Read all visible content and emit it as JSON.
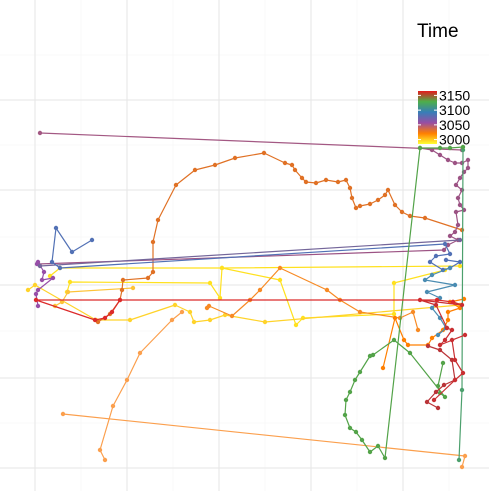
{
  "chart_data": {
    "type": "line",
    "title": "",
    "xlabel": "",
    "ylabel": "",
    "xlim": [
      0,
      489
    ],
    "ylim": [
      0,
      491
    ],
    "grid": true,
    "color_variable": "Time",
    "color_range": [
      2985,
      3165
    ],
    "legend": {
      "title": "Time",
      "position": "top-right",
      "ticks": [
        {
          "label": "3150",
          "value": 3150
        },
        {
          "label": "3100",
          "value": 3100
        },
        {
          "label": "3050",
          "value": 3050
        },
        {
          "label": "3000",
          "value": 3000
        }
      ],
      "gradient": [
        "#ffff33",
        "#ff7f00",
        "#984ea3",
        "#377eb8",
        "#4daf4a",
        "#e41a1c"
      ]
    },
    "series": [
      {
        "time": 2990,
        "color": "#ffe11f",
        "points": [
          [
            67,
            292
          ],
          [
            70,
            282
          ],
          [
            210,
            283
          ],
          [
            220,
            298
          ],
          [
            222,
            268
          ],
          [
            280,
            280
          ],
          [
            296,
            325
          ],
          [
            303,
            318
          ],
          [
            394,
            314
          ],
          [
            394,
            283
          ],
          [
            445,
            270
          ]
        ]
      },
      {
        "time": 2995,
        "color": "#ffe11f",
        "points": [
          [
            50,
            276
          ],
          [
            60,
            268
          ],
          [
            222,
            268
          ],
          [
            460,
            266
          ]
        ]
      },
      {
        "time": 3005,
        "color": "#ffd32a",
        "points": [
          [
            28,
            290
          ],
          [
            35,
            285
          ],
          [
            96,
            320
          ],
          [
            130,
            320
          ],
          [
            175,
            305
          ],
          [
            190,
            312
          ],
          [
            194,
            322
          ],
          [
            210,
            320
          ],
          [
            225,
            315
          ],
          [
            265,
            322
          ],
          [
            460,
            305
          ]
        ]
      },
      {
        "time": 3010,
        "color": "#fdc338",
        "points": [
          [
            55,
            306
          ],
          [
            62,
            302
          ],
          [
            68,
            292
          ],
          [
            133,
            288
          ]
        ]
      },
      {
        "time": 3015,
        "color": "#fb9f4d",
        "points": [
          [
            105,
            460
          ],
          [
            100,
            450
          ],
          [
            113,
            406
          ],
          [
            127,
            380
          ],
          [
            140,
            353
          ],
          [
            172,
            320
          ],
          [
            182,
            312
          ]
        ]
      },
      {
        "time": 3020,
        "color": "#fb9f4d",
        "points": [
          [
            63,
            414
          ],
          [
            465,
            456
          ],
          [
            462,
            467
          ]
        ]
      },
      {
        "time": 3025,
        "color": "#f78a24",
        "points": [
          [
            207,
            308
          ],
          [
            209,
            306
          ],
          [
            232,
            316
          ],
          [
            250,
            300
          ],
          [
            260,
            290
          ],
          [
            280,
            268
          ],
          [
            327,
            290
          ],
          [
            340,
            300
          ],
          [
            360,
            312
          ],
          [
            400,
            318
          ],
          [
            413,
            312
          ],
          [
            418,
            330
          ]
        ]
      },
      {
        "time": 3030,
        "color": "#ff7f00",
        "points": [
          [
            464,
            299
          ],
          [
            450,
            302
          ],
          [
            460,
            308
          ],
          [
            448,
            312
          ],
          [
            448,
            320
          ],
          [
            443,
            330
          ],
          [
            432,
            338
          ],
          [
            428,
            345
          ],
          [
            408,
            345
          ],
          [
            404,
            340
          ],
          [
            395,
            318
          ],
          [
            383,
            368
          ]
        ]
      },
      {
        "time": 3040,
        "color": "#e07125",
        "points": [
          [
            98,
            322
          ],
          [
            110,
            314
          ],
          [
            120,
            300
          ],
          [
            122,
            290
          ],
          [
            123,
            280
          ],
          [
            148,
            278
          ],
          [
            153,
            272
          ],
          [
            153,
            242
          ],
          [
            158,
            220
          ],
          [
            176,
            185
          ],
          [
            195,
            170
          ],
          [
            215,
            165
          ],
          [
            235,
            158
          ],
          [
            264,
            153
          ],
          [
            285,
            163
          ],
          [
            292,
            165
          ],
          [
            295,
            170
          ],
          [
            302,
            178
          ],
          [
            306,
            182
          ],
          [
            316,
            183
          ],
          [
            326,
            180
          ],
          [
            338,
            182
          ],
          [
            346,
            180
          ],
          [
            350,
            188
          ],
          [
            352,
            198
          ],
          [
            356,
            208
          ],
          [
            360,
            206
          ],
          [
            370,
            204
          ],
          [
            378,
            200
          ],
          [
            385,
            195
          ],
          [
            388,
            190
          ],
          [
            395,
            205
          ],
          [
            402,
            212
          ],
          [
            410,
            216
          ],
          [
            425,
            218
          ],
          [
            462,
            230
          ]
        ]
      },
      {
        "time": 3055,
        "color": "#a35883",
        "points": [
          [
            40,
            133
          ],
          [
            462,
            150
          ]
        ]
      },
      {
        "time": 3060,
        "color": "#9c5384",
        "points": [
          [
            420,
            148
          ],
          [
            432,
            150
          ],
          [
            440,
            155
          ],
          [
            448,
            160
          ],
          [
            455,
            163
          ],
          [
            462,
            163
          ],
          [
            468,
            160
          ],
          [
            468,
            168
          ],
          [
            464,
            172
          ],
          [
            460,
            178
          ],
          [
            456,
            185
          ],
          [
            462,
            190
          ],
          [
            458,
            198
          ],
          [
            460,
            205
          ],
          [
            464,
            210
          ],
          [
            456,
            212
          ],
          [
            458,
            225
          ],
          [
            455,
            232
          ],
          [
            450,
            236
          ],
          [
            458,
            240
          ],
          [
            448,
            245
          ],
          [
            444,
            250
          ],
          [
            38,
            264
          ]
        ]
      },
      {
        "time": 3065,
        "color": "#974ea8",
        "points": [
          [
            37,
            264
          ],
          [
            38,
            262
          ],
          [
            44,
            272
          ],
          [
            42,
            280
          ],
          [
            53,
            278
          ],
          [
            38,
            290
          ],
          [
            36,
            294
          ],
          [
            38,
            306
          ]
        ]
      },
      {
        "time": 3075,
        "color": "#74669a",
        "points": [
          [
            460,
            240
          ],
          [
            40,
            266
          ]
        ]
      },
      {
        "time": 3080,
        "color": "#5271b5",
        "points": [
          [
            446,
            260
          ],
          [
            460,
            262
          ],
          [
            450,
            268
          ],
          [
            443,
            270
          ],
          [
            430,
            262
          ],
          [
            436,
            256
          ],
          [
            450,
            254
          ],
          [
            445,
            244
          ],
          [
            60,
            268
          ],
          [
            52,
            262
          ],
          [
            56,
            228
          ],
          [
            72,
            252
          ],
          [
            92,
            240
          ]
        ]
      },
      {
        "time": 3090,
        "color": "#4a8cb2",
        "points": [
          [
            450,
            268
          ],
          [
            432,
            275
          ],
          [
            425,
            280
          ],
          [
            455,
            285
          ],
          [
            427,
            292
          ],
          [
            440,
            298
          ],
          [
            432,
            308
          ],
          [
            440,
            318
          ],
          [
            446,
            328
          ],
          [
            438,
            335
          ]
        ]
      },
      {
        "time": 3100,
        "color": "#4ca06d",
        "points": [
          [
            463,
            150
          ],
          [
            462,
            390
          ],
          [
            459,
            460
          ]
        ]
      },
      {
        "time": 3110,
        "color": "#53a349",
        "points": [
          [
            443,
            363
          ],
          [
            438,
            386
          ],
          [
            440,
            393
          ],
          [
            445,
            397
          ],
          [
            410,
            353
          ],
          [
            394,
            340
          ],
          [
            373,
            355
          ],
          [
            370,
            356
          ],
          [
            360,
            372
          ],
          [
            355,
            380
          ],
          [
            350,
            392
          ],
          [
            346,
            400
          ],
          [
            345,
            415
          ],
          [
            350,
            428
          ],
          [
            356,
            432
          ],
          [
            362,
            440
          ],
          [
            370,
            452
          ],
          [
            378,
            446
          ],
          [
            385,
            458
          ],
          [
            420,
            148
          ],
          [
            440,
            148
          ],
          [
            450,
            148
          ],
          [
            463,
            147
          ]
        ]
      },
      {
        "time": 3125,
        "color": "#ba3438",
        "points": [
          [
            428,
            346
          ],
          [
            440,
            350
          ],
          [
            452,
            360
          ],
          [
            455,
            380
          ],
          [
            444,
            385
          ],
          [
            436,
            392
          ],
          [
            427,
            402
          ],
          [
            438,
            408
          ]
        ]
      },
      {
        "time": 3135,
        "color": "#c92f32",
        "points": [
          [
            434,
            400
          ],
          [
            455,
            380
          ],
          [
            463,
            373
          ],
          [
            455,
            360
          ],
          [
            452,
            340
          ],
          [
            465,
            335
          ],
          [
            440,
            345
          ],
          [
            445,
            340
          ],
          [
            452,
            330
          ],
          [
            447,
            328
          ],
          [
            436,
            305
          ],
          [
            420,
            300
          ],
          [
            462,
            305
          ],
          [
            453,
            302
          ]
        ]
      },
      {
        "time": 3150,
        "color": "#dc2a2a",
        "points": [
          [
            453,
            302
          ],
          [
            437,
            300
          ],
          [
            36,
            300
          ],
          [
            95,
            320
          ],
          [
            105,
            318
          ],
          [
            112,
            312
          ],
          [
            120,
            300
          ]
        ]
      }
    ]
  }
}
